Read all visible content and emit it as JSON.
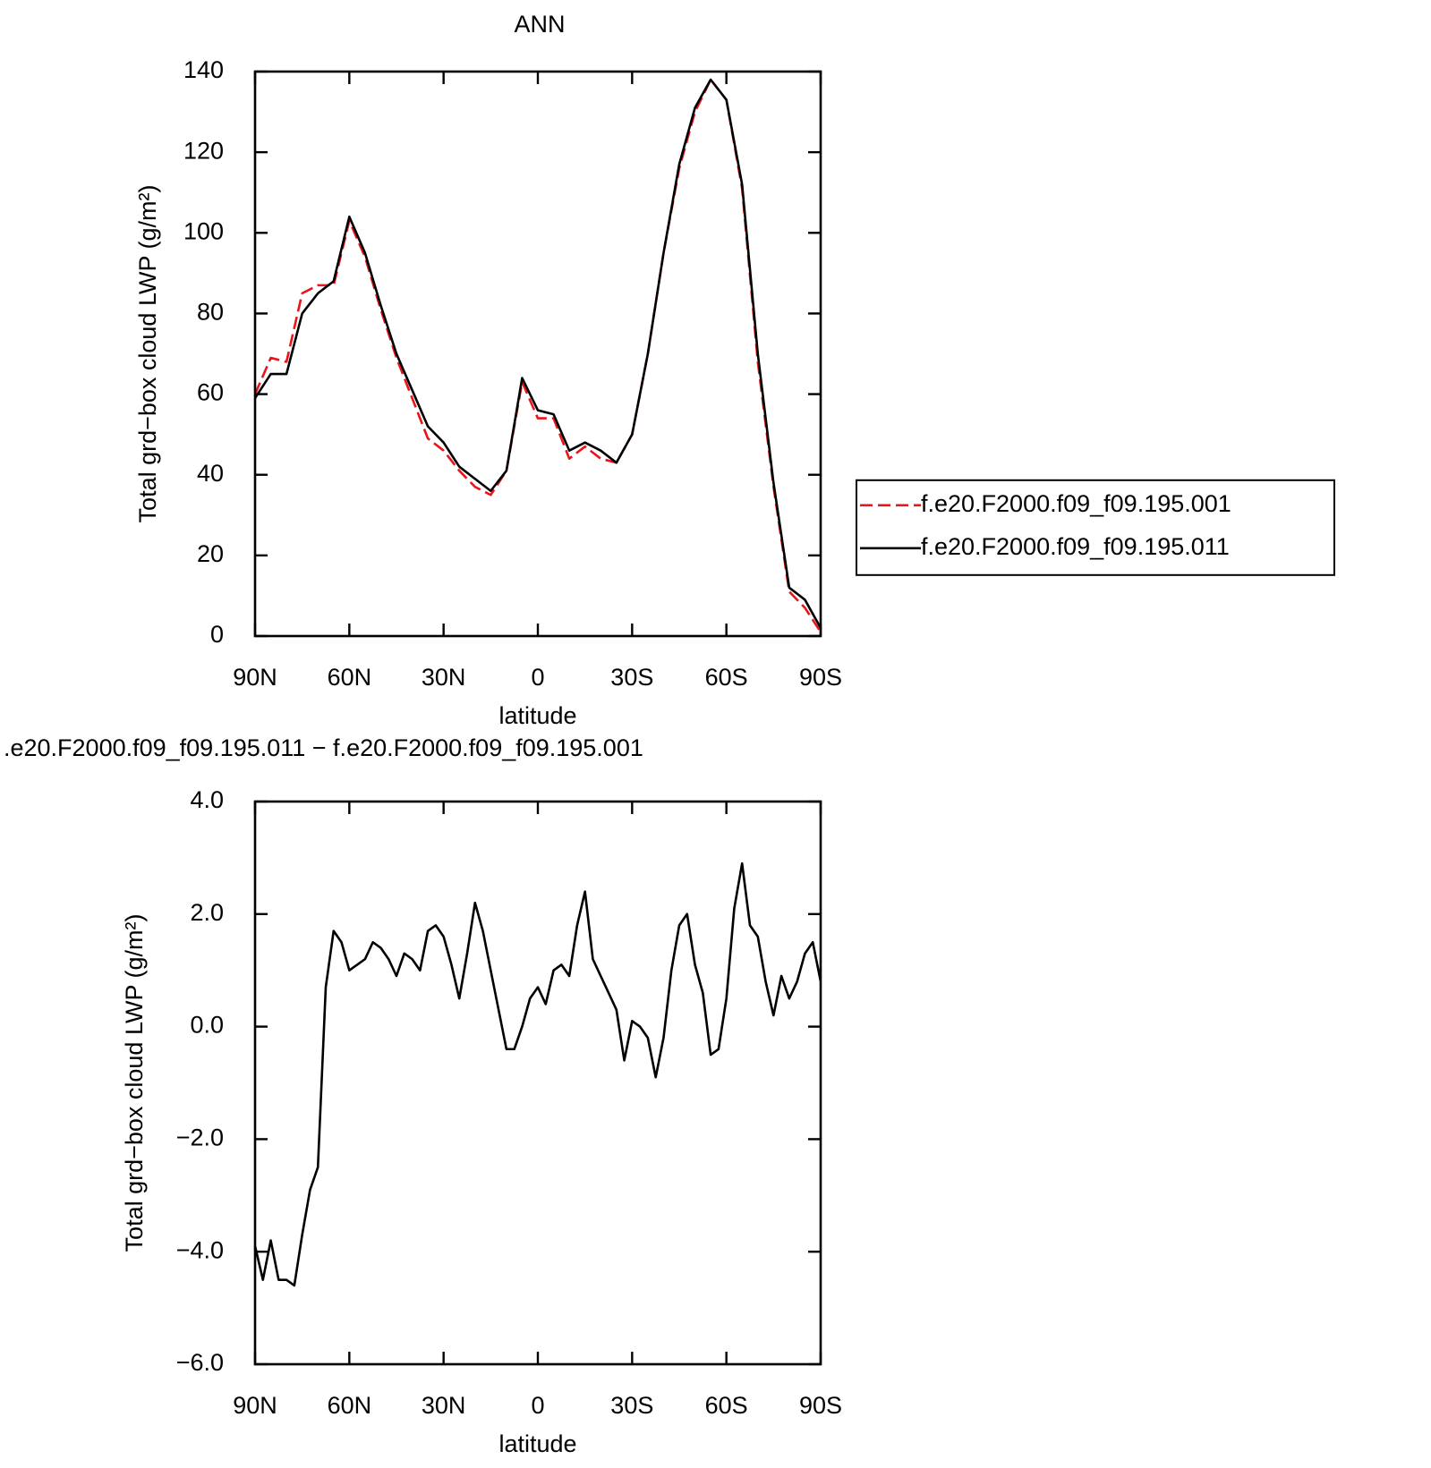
{
  "chart_data": [
    {
      "type": "line",
      "title": "ANN",
      "xlabel": "latitude",
      "ylabel": "Total grd−box cloud LWP (g/m²)",
      "x": [
        90,
        85,
        80,
        75,
        70,
        65,
        60,
        55,
        50,
        45,
        40,
        35,
        30,
        25,
        20,
        15,
        10,
        5,
        0,
        -5,
        -10,
        -15,
        -20,
        -25,
        -30,
        -35,
        -40,
        -45,
        -50,
        -55,
        -60,
        -65,
        -70,
        -75,
        -80,
        -85,
        -90
      ],
      "series": [
        {
          "name": "f.e20.F2000.f09_f09.195.001",
          "color": "#e8151b",
          "linestyle": "dashed",
          "values": [
            60,
            69,
            68,
            85,
            87,
            87,
            103,
            94,
            81,
            69,
            59,
            49,
            46,
            41,
            37,
            35,
            41,
            63,
            54,
            54,
            44,
            47,
            44,
            43,
            50,
            70,
            95,
            116,
            130,
            138,
            133,
            111,
            68,
            37,
            11,
            7,
            1
          ]
        },
        {
          "name": "f.e20.F2000.f09_f09.195.011",
          "color": "#000000",
          "linestyle": "solid",
          "values": [
            59,
            65,
            65,
            80,
            85,
            88,
            104,
            95,
            82,
            70,
            61,
            52,
            48,
            42,
            39,
            36,
            41,
            64,
            56,
            55,
            46,
            48,
            46,
            43,
            50,
            70,
            95,
            117,
            131,
            138,
            133,
            112,
            70,
            38,
            12,
            9,
            2
          ]
        }
      ],
      "xlim": [
        90,
        -90
      ],
      "xticks": [
        {
          "value": 90,
          "label": "90N"
        },
        {
          "value": 60,
          "label": "60N"
        },
        {
          "value": 30,
          "label": "30N"
        },
        0,
        {
          "value": -30,
          "label": "30S"
        },
        {
          "value": -60,
          "label": "60S"
        },
        {
          "value": -90,
          "label": "90S"
        }
      ],
      "ylim": [
        0,
        140
      ],
      "yticks": [
        0,
        20,
        40,
        60,
        80,
        100,
        120,
        140
      ],
      "legend": "right"
    },
    {
      "type": "line",
      "title": ".e20.F2000.f09_f09.195.011 − f.e20.F2000.f09_f09.195.001",
      "xlabel": "latitude",
      "ylabel": "Total grd−box cloud LWP (g/m²)",
      "x": [
        90,
        87.5,
        85,
        82.5,
        80,
        77.5,
        75,
        72.5,
        70,
        67.5,
        65,
        62.5,
        60,
        57.5,
        55,
        52.5,
        50,
        47.5,
        45,
        42.5,
        40,
        37.5,
        35,
        32.5,
        30,
        27.5,
        25,
        22.5,
        20,
        17.5,
        15,
        12.5,
        10,
        7.5,
        5,
        2.5,
        0,
        -2.5,
        -5,
        -7.5,
        -10,
        -12.5,
        -15,
        -17.5,
        -20,
        -22.5,
        -25,
        -27.5,
        -30,
        -32.5,
        -35,
        -37.5,
        -40,
        -42.5,
        -45,
        -47.5,
        -50,
        -52.5,
        -55,
        -57.5,
        -60,
        -62.5,
        -65,
        -67.5,
        -70,
        -72.5,
        -75,
        -77.5,
        -80,
        -82.5,
        -85,
        -87.5,
        -90
      ],
      "series": [
        {
          "name": null,
          "color": "#000000",
          "linestyle": "solid",
          "values": [
            -3.9,
            -4.5,
            -3.8,
            -4.5,
            -4.5,
            -4.6,
            -3.7,
            -2.9,
            -2.5,
            0.7,
            1.7,
            1.5,
            1.0,
            1.1,
            1.2,
            1.5,
            1.4,
            1.2,
            0.9,
            1.3,
            1.2,
            1.0,
            1.7,
            1.8,
            1.6,
            1.1,
            0.5,
            1.3,
            2.2,
            1.7,
            1.0,
            0.3,
            -0.4,
            -0.4,
            0.0,
            0.5,
            0.7,
            0.4,
            1.0,
            1.1,
            0.9,
            1.8,
            2.4,
            1.2,
            0.9,
            0.6,
            0.3,
            -0.6,
            0.1,
            0.0,
            -0.2,
            -0.9,
            -0.2,
            1.0,
            1.8,
            2.0,
            1.1,
            0.6,
            -0.5,
            -0.4,
            0.5,
            2.1,
            2.9,
            1.8,
            1.6,
            0.8,
            0.2,
            0.9,
            0.5,
            0.8,
            1.3,
            1.5,
            0.8
          ]
        }
      ],
      "xlim": [
        90,
        -90
      ],
      "xticks": [
        {
          "value": 90,
          "label": "90N"
        },
        {
          "value": 60,
          "label": "60N"
        },
        {
          "value": 30,
          "label": "30N"
        },
        0,
        {
          "value": -30,
          "label": "30S"
        },
        {
          "value": -60,
          "label": "60S"
        },
        {
          "value": -90,
          "label": "90S"
        }
      ],
      "ylim": [
        -6,
        4
      ],
      "yticks": [
        {
          "value": -6,
          "label": "−6.0"
        },
        {
          "value": -4,
          "label": "−4.0"
        },
        {
          "value": -2,
          "label": "−2.0"
        },
        {
          "value": 0,
          "label": "0.0"
        },
        {
          "value": 2,
          "label": "2.0"
        },
        {
          "value": 4,
          "label": "4.0"
        }
      ]
    }
  ]
}
